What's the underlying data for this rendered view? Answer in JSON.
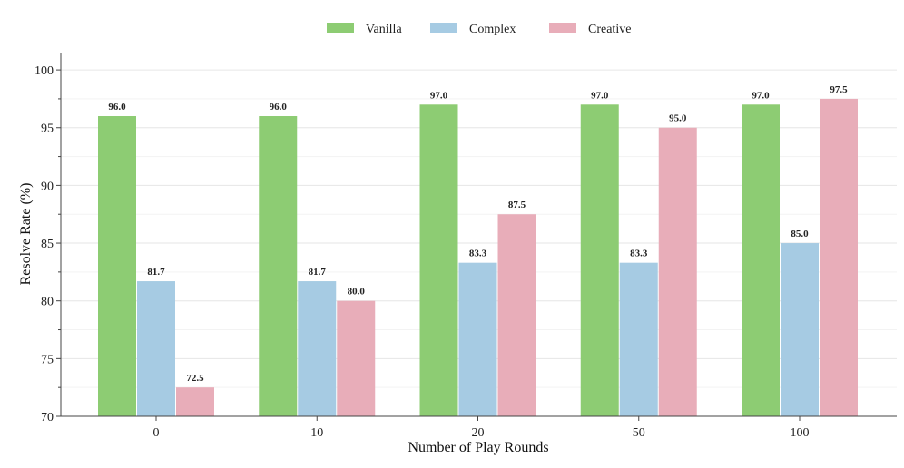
{
  "chart_data": {
    "type": "bar",
    "title": "",
    "xlabel": "Number of Play Rounds",
    "ylabel": "Resolve Rate (%)",
    "categories": [
      "0",
      "10",
      "20",
      "50",
      "100"
    ],
    "ylim": [
      70,
      101.5
    ],
    "yticks": [
      70,
      75,
      80,
      85,
      90,
      95,
      100
    ],
    "grid": true,
    "legend_position": "top-center",
    "series": [
      {
        "name": "Vanilla",
        "color": "#8dcc73",
        "values": [
          96.0,
          96.0,
          97.0,
          97.0,
          97.0
        ],
        "labels": [
          "96.0",
          "96.0",
          "97.0",
          "97.0",
          "97.0"
        ]
      },
      {
        "name": "Complex",
        "color": "#a6cbe3",
        "values": [
          81.7,
          81.7,
          83.3,
          83.3,
          85.0
        ],
        "labels": [
          "81.7",
          "81.7",
          "83.3",
          "83.3",
          "85.0"
        ]
      },
      {
        "name": "Creative",
        "color": "#e8adb9",
        "values": [
          72.5,
          80.0,
          87.5,
          95.0,
          97.5
        ],
        "labels": [
          "72.5",
          "80.0",
          "87.5",
          "95.0",
          "97.5"
        ]
      }
    ]
  }
}
